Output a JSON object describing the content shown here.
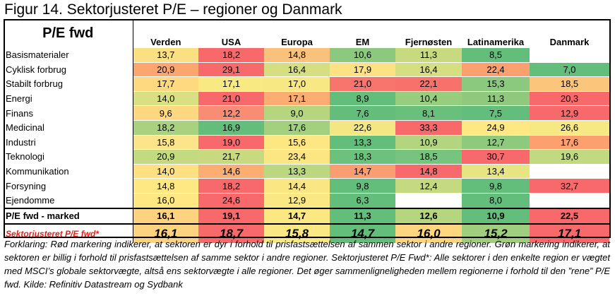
{
  "title": "Figur 14. Sektorjusteret P/E – regioner og Danmark",
  "chart_data": {
    "type": "heatmap",
    "corner_label": "P/E fwd",
    "columns": [
      "Verden",
      "USA",
      "Europa",
      "EM",
      "Fjernøsten",
      "Latinamerika",
      "Danmark"
    ],
    "rows": [
      {
        "label": "Basismaterialer",
        "values": [
          "13,7",
          "18,2",
          "14,8",
          "10,6",
          "11,3",
          "8,5",
          ""
        ]
      },
      {
        "label": "Cyklisk forbrug",
        "values": [
          "20,9",
          "29,1",
          "16,4",
          "17,9",
          "16,4",
          "22,4",
          "7,0"
        ]
      },
      {
        "label": "Stabilt forbrug",
        "values": [
          "17,7",
          "17,1",
          "17,0",
          "21,0",
          "22,1",
          "15,3",
          "18,5"
        ]
      },
      {
        "label": "Energi",
        "values": [
          "14,0",
          "21,0",
          "17,1",
          "8,9",
          "10,4",
          "11,3",
          "20,3"
        ]
      },
      {
        "label": "Finans",
        "values": [
          "9,6",
          "12,2",
          "9,0",
          "7,6",
          "8,1",
          "7,5",
          "12,9"
        ]
      },
      {
        "label": "Medicinal",
        "values": [
          "18,2",
          "16,9",
          "17,6",
          "22,6",
          "33,3",
          "24,9",
          "26,6"
        ]
      },
      {
        "label": "Industri",
        "values": [
          "15,8",
          "19,0",
          "15,6",
          "13,3",
          "10,9",
          "12,7",
          "17,6"
        ]
      },
      {
        "label": "Teknologi",
        "values": [
          "20,9",
          "21,7",
          "23,4",
          "18,3",
          "18,5",
          "30,7",
          "19,6"
        ]
      },
      {
        "label": "Kommunikation",
        "values": [
          "14,0",
          "14,6",
          "13,3",
          "14,7",
          "14,8",
          "13,4",
          ""
        ]
      },
      {
        "label": "Forsyning",
        "values": [
          "14,8",
          "18,2",
          "14,4",
          "9,8",
          "12,4",
          "9,8",
          "32,7"
        ]
      },
      {
        "label": "Ejendomme",
        "values": [
          "16,0",
          "24,6",
          "12,9",
          "6,3",
          "",
          "8,0",
          ""
        ]
      }
    ],
    "colors": [
      [
        "#fbe083",
        "#f8696b",
        "#f9c27c",
        "#8cc97e",
        "#c7da80",
        "#63be7b",
        "#ffffff"
      ],
      [
        "#fba66e",
        "#f8696b",
        "#d5df82",
        "#fce282",
        "#d5df82",
        "#fba06e",
        "#63be7b"
      ],
      [
        "#fed980",
        "#f9e983",
        "#f7e883",
        "#f8756d",
        "#f8726c",
        "#8bc97e",
        "#fbc57c"
      ],
      [
        "#d9e081",
        "#f8696b",
        "#fbad72",
        "#63be7b",
        "#97cd7e",
        "#8ec97e",
        "#f8696b"
      ],
      [
        "#fed880",
        "#f98d73",
        "#b5d67f",
        "#63be7b",
        "#69c07c",
        "#63be7b",
        "#f8696b"
      ],
      [
        "#a8d27f",
        "#63be7b",
        "#a3d07f",
        "#f4e783",
        "#f8696b",
        "#fde883",
        "#f6e883"
      ],
      [
        "#fbe48a",
        "#f8696b",
        "#fce783",
        "#63be7b",
        "#b3d57f",
        "#8dca7e",
        "#fba06e"
      ],
      [
        "#c4da80",
        "#c7da80",
        "#fbe683",
        "#6cc27c",
        "#76c47d",
        "#f8696b",
        "#c1d980"
      ],
      [
        "#fedf81",
        "#fcad72",
        "#bbd780",
        "#fa9e71",
        "#f8696b",
        "#e7e582",
        "#ffffff"
      ],
      [
        "#fde883",
        "#f8696b",
        "#fae683",
        "#63be7b",
        "#c5da80",
        "#63be7b",
        "#f8696b"
      ],
      [
        "#ffe783",
        "#f8696b",
        "#f9e883",
        "#63be7b",
        "#ffffff",
        "#63be7b",
        "#ffffff"
      ]
    ],
    "market": {
      "label": "P/E fwd - marked",
      "values": [
        "16,1",
        "19,1",
        "14,7",
        "11,3",
        "12,6",
        "10,9",
        "22,5"
      ],
      "colors": [
        "#fed37f",
        "#f8696b",
        "#fbe883",
        "#63be7b",
        "#b5d67f",
        "#63be7b",
        "#f8696b"
      ]
    },
    "adjusted": {
      "label": "Sektorjusteret P/E fwd*",
      "values": [
        "16,1",
        "18,7",
        "15,8",
        "14,7",
        "16,0",
        "15,2",
        "17,1"
      ],
      "colors": [
        "#fed37f",
        "#f8696b",
        "#f9e883",
        "#63be7b",
        "#fed680",
        "#9fcf7e",
        "#f8696b"
      ]
    },
    "legend_note": "Forklaring: Rød markering indikerer, at sektoren er dyr i forhold til prisfastsættelsen af sammen sektor i andre regioner. Grøn markering indikerer, at sektoren er billig i forhold til prisfastsættelsen af samme sektor i andre regioner. Sektorjusteret P/E Fwd*: Alle sektorer i den enkelte region er vægtet med MSCI’s globale sektorvægte, altså ens sektorvægte i alle regioner. Det øger sammenligneligheden mellem regionerne i forhold til den ”rene” P/E fwd. Kilde: Refinitiv Datastream og Sydbank"
  }
}
